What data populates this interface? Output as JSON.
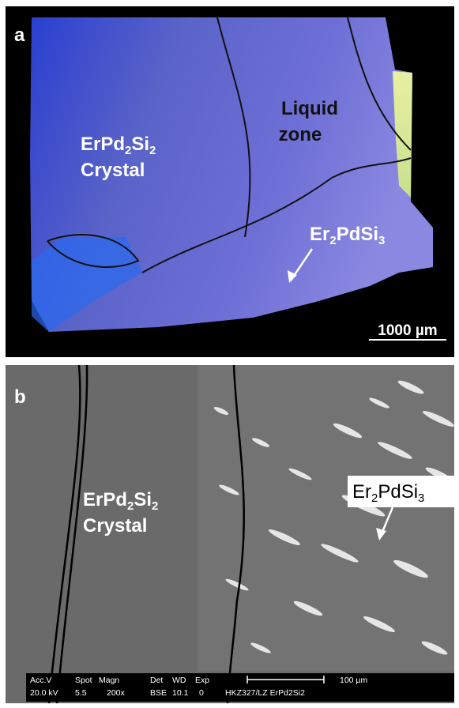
{
  "panel_a": {
    "letter": "a",
    "crystal_label": [
      "ErPd",
      "2",
      "Si",
      "2"
    ],
    "crystal_label_line2": "Crystal",
    "liquid_zone": [
      "Liquid",
      "zone"
    ],
    "phase_label": [
      "Er",
      "2",
      "PdSi",
      "3"
    ],
    "scale_bar": "1000 µm"
  },
  "panel_b": {
    "letter": "b",
    "crystal_label": [
      "ErPd",
      "2",
      "Si",
      "2"
    ],
    "crystal_label_line2": "Crystal",
    "phase_label": [
      "Er",
      "2",
      "PdSi",
      "3"
    ],
    "info_header": [
      "Acc.V",
      "Spot",
      "Magn",
      "Det",
      "WD",
      "Exp"
    ],
    "info_values": [
      "20.0 kV",
      "5.5",
      "200x",
      "BSE",
      "10.1",
      "0",
      "HKZ327/LZ ErPd2Si2"
    ],
    "scale_bar": "100 µm"
  }
}
